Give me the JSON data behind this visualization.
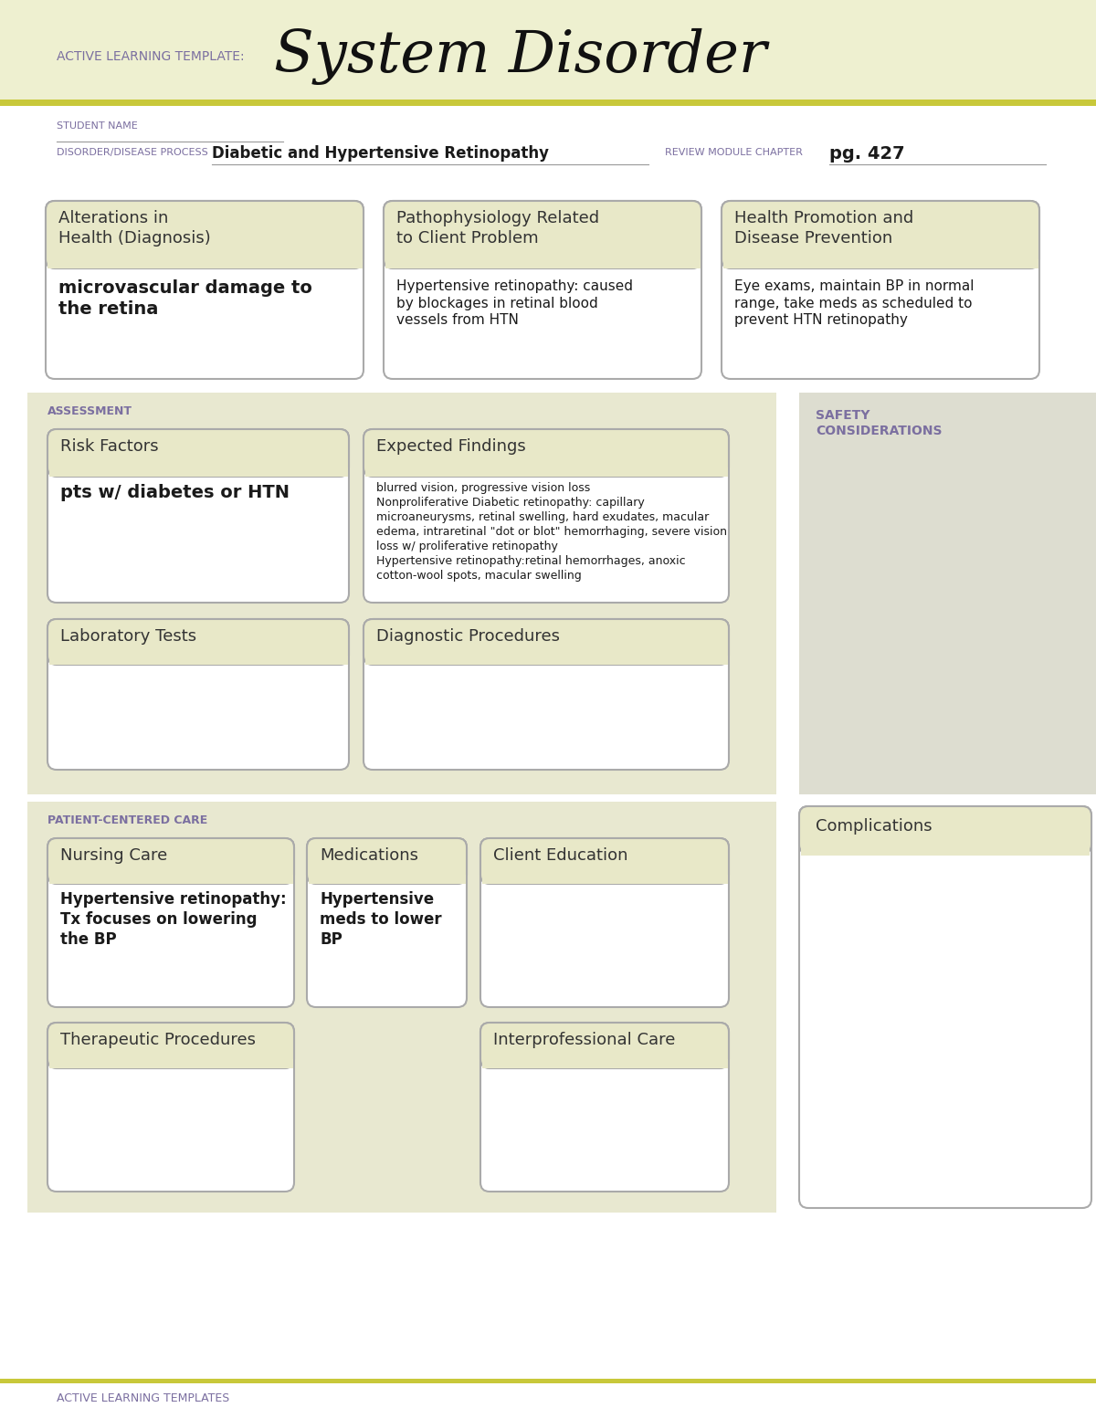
{
  "white": "#ffffff",
  "header_bg": "#eef0d0",
  "box_header_bg": "#e8e8c8",
  "assess_bg": "#e8e8d0",
  "safety_bg": "#ddddd0",
  "pcc_bg": "#e8e8d0",
  "comp_bg": "#ddddd0",
  "border_color": "#aaaaaa",
  "purple_color": "#7b6fa0",
  "dark_text": "#1a1a1a",
  "med_text": "#333333",
  "olive_line": "#c8c83a",
  "title_large": "System Disorder",
  "title_small": "ACTIVE LEARNING TEMPLATE:",
  "student_name_label": "STUDENT NAME",
  "disorder_label": "DISORDER/DISEASE PROCESS",
  "disorder_value": "Diabetic and Hypertensive Retinopathy",
  "review_label": "REVIEW MODULE CHAPTER",
  "review_value": "pg. 427",
  "box1_title": "Alterations in\nHealth (Diagnosis)",
  "box1_content": "microvascular damage to\nthe retina",
  "box2_title": "Pathophysiology Related\nto Client Problem",
  "box2_content": "Hypertensive retinopathy: caused\nby blockages in retinal blood\nvessels from HTN",
  "box3_title": "Health Promotion and\nDisease Prevention",
  "box3_content": "Eye exams, maintain BP in normal\nrange, take meds as scheduled to\nprevent HTN retinopathy",
  "assessment_label": "ASSESSMENT",
  "safety_label": "SAFETY\nCONSIDERATIONS",
  "risk_title": "Risk Factors",
  "risk_content": "pts w/ diabetes or HTN",
  "expected_title": "Expected Findings",
  "expected_content": "blurred vision, progressive vision loss\nNonproliferative Diabetic retinopathy: capillary\nmicroaneurysms, retinal swelling, hard exudates, macular\nedema, intraretinal \"dot or blot\" hemorrhaging, severe vision\nloss w/ proliferative retinopathy\nHypertensive retinopathy:retinal hemorrhages, anoxic\ncotton-wool spots, macular swelling",
  "lab_title": "Laboratory Tests",
  "diag_title": "Diagnostic Procedures",
  "patient_care_label": "PATIENT-CENTERED CARE",
  "nursing_title": "Nursing Care",
  "nursing_content": "Hypertensive retinopathy:\nTx focuses on lowering\nthe BP",
  "meds_title": "Medications",
  "meds_content": "Hypertensive\nmeds to lower\nBP",
  "client_ed_title": "Client Education",
  "complications_title": "Complications",
  "therapeutic_title": "Therapeutic Procedures",
  "interpro_title": "Interprofessional Care",
  "footer_text": "ACTIVE LEARNING TEMPLATES"
}
